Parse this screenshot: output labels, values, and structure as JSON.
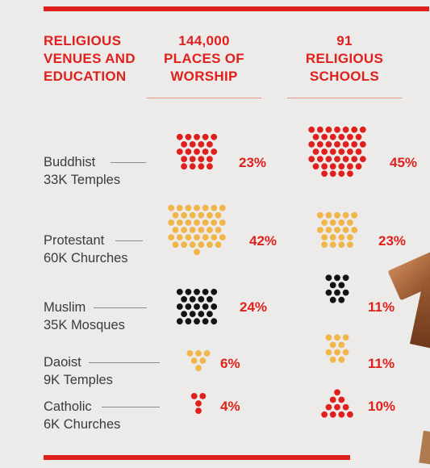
{
  "header": {
    "title_lines": [
      "RELIGIOUS",
      "VENUES AND",
      "EDUCATION"
    ],
    "col1_lines": [
      "144,000",
      "PLACES OF",
      "WORSHIP"
    ],
    "col2_lines": [
      "91",
      "RELIGIOUS",
      "SCHOOLS"
    ]
  },
  "colors": {
    "accent": "#e0201c",
    "buddhist": "#e0201c",
    "protestant": "#f1b54a",
    "muslim": "#141414",
    "daoist": "#f1b54a",
    "catholic": "#e0201c"
  },
  "chart_data": {
    "type": "table",
    "columns": [
      "144,000 PLACES OF WORSHIP",
      "91 RELIGIOUS SCHOOLS"
    ],
    "rows": [
      {
        "religion": "Buddhist",
        "detail": "33K Temples",
        "places_pct": 23,
        "schools_pct": 45,
        "places_label": "23%",
        "schools_label": "45%"
      },
      {
        "religion": "Protestant",
        "detail": "60K Churches",
        "places_pct": 42,
        "schools_pct": 23,
        "places_label": "42%",
        "schools_label": "23%"
      },
      {
        "religion": "Muslim",
        "detail": "35K Mosques",
        "places_pct": 24,
        "schools_pct": 11,
        "places_label": "24%",
        "schools_label": "11%"
      },
      {
        "religion": "Daoist",
        "detail": "9K Temples",
        "places_pct": 6,
        "schools_pct": 11,
        "places_label": "6%",
        "schools_label": "11%"
      },
      {
        "religion": "Catholic",
        "detail": "6K Churches",
        "places_pct": 4,
        "schools_pct": 10,
        "places_label": "4%",
        "schools_label": "10%"
      }
    ]
  }
}
